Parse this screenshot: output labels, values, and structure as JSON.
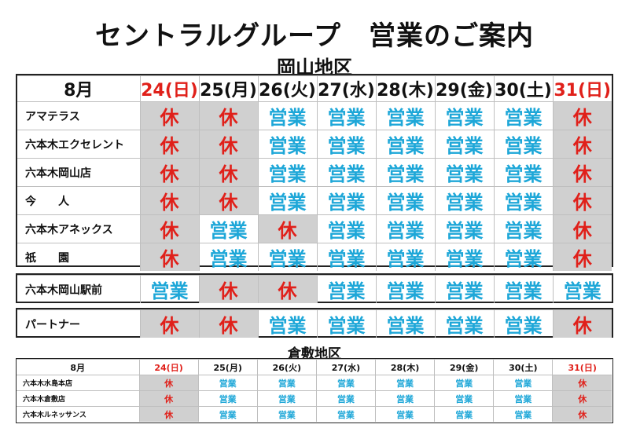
{
  "title": "セントラルグループ　営業のご案内",
  "okayama": {
    "region": "岡山地区",
    "month": "8月",
    "days": [
      {
        "label": "24(日)",
        "holiday": true
      },
      {
        "label": "25(月)",
        "holiday": false
      },
      {
        "label": "26(火)",
        "holiday": false
      },
      {
        "label": "27(水)",
        "holiday": false
      },
      {
        "label": "28(木)",
        "holiday": false
      },
      {
        "label": "29(金)",
        "holiday": false
      },
      {
        "label": "30(土)",
        "holiday": false
      },
      {
        "label": "31(日)",
        "holiday": true
      }
    ],
    "main_rows": [
      {
        "name": "アマテラス",
        "status": [
          "休",
          "休",
          "営業",
          "営業",
          "営業",
          "営業",
          "営業",
          "休"
        ]
      },
      {
        "name": "六本木エクセレント",
        "status": [
          "休",
          "休",
          "営業",
          "営業",
          "営業",
          "営業",
          "営業",
          "休"
        ]
      },
      {
        "name": "六本木岡山店",
        "status": [
          "休",
          "休",
          "営業",
          "営業",
          "営業",
          "営業",
          "営業",
          "休"
        ]
      },
      {
        "name": "今　　人",
        "status": [
          "休",
          "休",
          "営業",
          "営業",
          "営業",
          "営業",
          "営業",
          "休"
        ]
      },
      {
        "name": "六本木アネックス",
        "status": [
          "休",
          "営業",
          "休",
          "営業",
          "営業",
          "営業",
          "営業",
          "休"
        ]
      },
      {
        "name": "祇　　園",
        "status": [
          "休",
          "営業",
          "営業",
          "営業",
          "営業",
          "営業",
          "営業",
          "休"
        ]
      }
    ],
    "station_row": {
      "name": "六本木岡山駅前",
      "status": [
        "営業",
        "休",
        "休",
        "営業",
        "営業",
        "営業",
        "営業",
        "営業"
      ]
    },
    "partner_row": {
      "name": "パートナー",
      "status": [
        "休",
        "休",
        "営業",
        "営業",
        "営業",
        "営業",
        "営業",
        "休"
      ]
    }
  },
  "kurashiki": {
    "region": "倉敷地区",
    "month": "8月",
    "days": [
      {
        "label": "24(日)",
        "holiday": true
      },
      {
        "label": "25(月)",
        "holiday": false
      },
      {
        "label": "26(火)",
        "holiday": false
      },
      {
        "label": "27(水)",
        "holiday": false
      },
      {
        "label": "28(木)",
        "holiday": false
      },
      {
        "label": "29(金)",
        "holiday": false
      },
      {
        "label": "30(土)",
        "holiday": false
      },
      {
        "label": "31(日)",
        "holiday": true
      }
    ],
    "rows": [
      {
        "name": "六本木水島本店",
        "status": [
          "休",
          "営業",
          "営業",
          "営業",
          "営業",
          "営業",
          "営業",
          "休"
        ]
      },
      {
        "name": "六本木倉敷店",
        "status": [
          "休",
          "営業",
          "営業",
          "営業",
          "営業",
          "営業",
          "営業",
          "休"
        ]
      },
      {
        "name": "六本木ルネッサンス",
        "status": [
          "休",
          "営業",
          "営業",
          "営業",
          "営業",
          "営業",
          "営業",
          "休"
        ]
      }
    ]
  },
  "colors": {
    "open": "#1ea7d8",
    "closed": "#e0201a",
    "closed_bg": "#d0d0d0"
  }
}
